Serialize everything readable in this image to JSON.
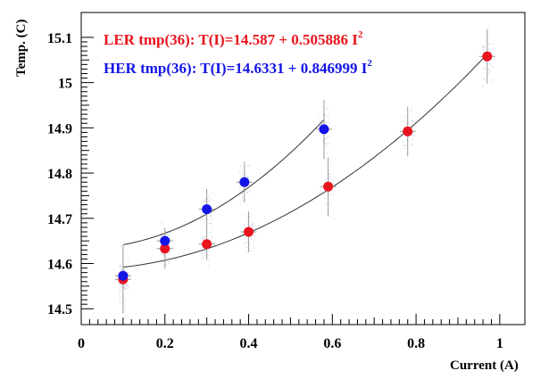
{
  "chart_data": {
    "type": "scatter",
    "title": "",
    "xlabel": "Current (A)",
    "ylabel": "Temp. (C)",
    "xlim": [
      0,
      1.06
    ],
    "ylim": [
      14.465,
      15.155
    ],
    "x_ticks": [
      {
        "value": 0,
        "label": "0"
      },
      {
        "value": 0.2,
        "label": "0.2"
      },
      {
        "value": 0.4,
        "label": "0.4"
      },
      {
        "value": 0.6,
        "label": "0.6"
      },
      {
        "value": 0.8,
        "label": "0.8"
      },
      {
        "value": 1.0,
        "label": "1"
      }
    ],
    "y_ticks": [
      {
        "value": 14.5,
        "label": "14.5"
      },
      {
        "value": 14.6,
        "label": "14.6"
      },
      {
        "value": 14.7,
        "label": "14.7"
      },
      {
        "value": 14.8,
        "label": "14.8"
      },
      {
        "value": 14.9,
        "label": "14.9"
      },
      {
        "value": 15.0,
        "label": "15"
      },
      {
        "value": 15.1,
        "label": "15.1"
      }
    ],
    "grid": false,
    "legend": {
      "placement": "top-left"
    },
    "series": [
      {
        "name": "LER tmp(36): T(I)=14.587 + 0.505886 I",
        "superscript": "2",
        "color": "#e8141e",
        "points": [
          {
            "x": 0.1,
            "y": 14.565,
            "yerr": 0.075
          },
          {
            "x": 0.2,
            "y": 14.633,
            "yerr": 0.045
          },
          {
            "x": 0.3,
            "y": 14.643,
            "yerr": 0.035
          },
          {
            "x": 0.4,
            "y": 14.67,
            "yerr": 0.045
          },
          {
            "x": 0.59,
            "y": 14.77,
            "yerr": 0.065
          },
          {
            "x": 0.78,
            "y": 14.892,
            "yerr": 0.055
          },
          {
            "x": 0.97,
            "y": 15.058,
            "yerr": 0.06
          }
        ],
        "fit": {
          "a": 14.587,
          "b": 0.505886,
          "xmin": 0.1,
          "xmax": 0.97
        }
      },
      {
        "name": "HER tmp(36): T(I)=14.6331 + 0.846999 I",
        "superscript": "2",
        "color": "#1414e6",
        "points": [
          {
            "x": 0.1,
            "y": 14.573,
            "yerr": 0.0
          },
          {
            "x": 0.2,
            "y": 14.65,
            "yerr": 0.0
          },
          {
            "x": 0.3,
            "y": 14.72,
            "yerr": 0.045
          },
          {
            "x": 0.39,
            "y": 14.78,
            "yerr": 0.045
          },
          {
            "x": 0.58,
            "y": 14.897,
            "yerr": 0.065
          }
        ],
        "fit": {
          "a": 14.6331,
          "b": 0.846999,
          "xmin": 0.1,
          "xmax": 0.58
        }
      }
    ]
  }
}
